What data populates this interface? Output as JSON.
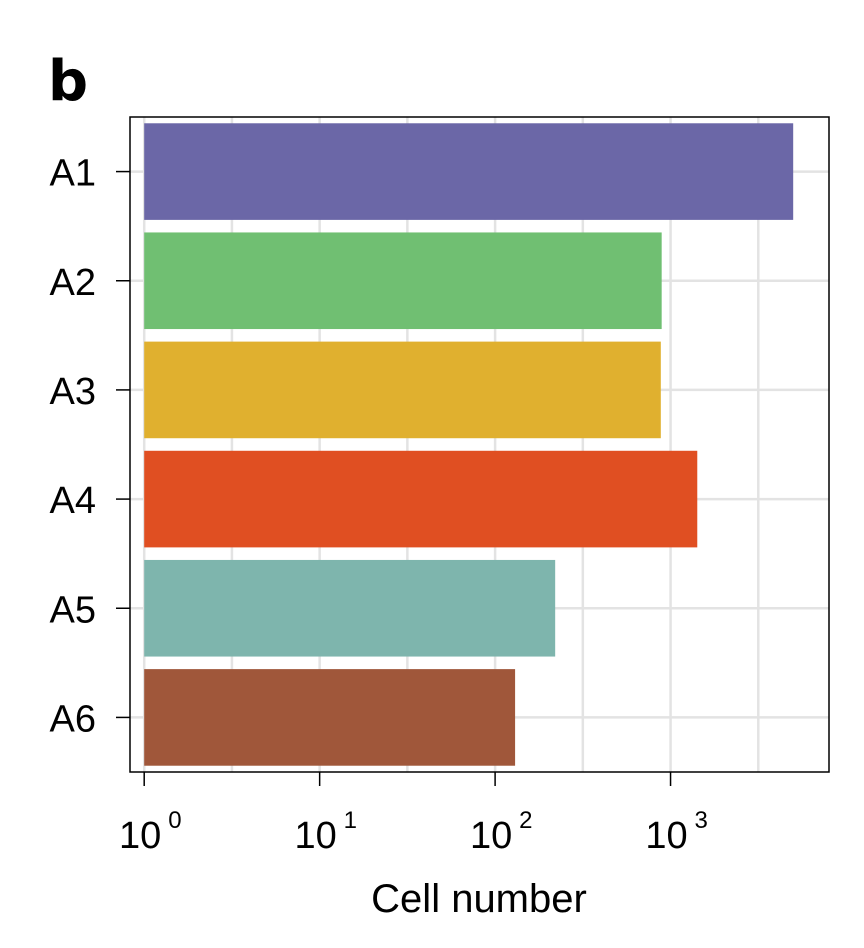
{
  "panel_label": "b",
  "chart_data": {
    "type": "bar",
    "orientation": "horizontal",
    "xlabel": "Cell number",
    "ylabel": "",
    "x_scale": "log",
    "xlim": [
      0.83,
      8000
    ],
    "x_ticks": [
      {
        "value": 1,
        "base": "10",
        "exp": "0"
      },
      {
        "value": 10,
        "base": "10",
        "exp": "1"
      },
      {
        "value": 100,
        "base": "10",
        "exp": "2"
      },
      {
        "value": 1000,
        "base": "10",
        "exp": "3"
      }
    ],
    "grid": true,
    "categories": [
      "A1",
      "A2",
      "A3",
      "A4",
      "A5",
      "A6"
    ],
    "values": [
      5000,
      890,
      880,
      1420,
      220,
      130
    ],
    "colors": [
      "#6b67a7",
      "#70bf72",
      "#e0b02f",
      "#e04f22",
      "#7eb5ad",
      "#a0573a"
    ]
  }
}
